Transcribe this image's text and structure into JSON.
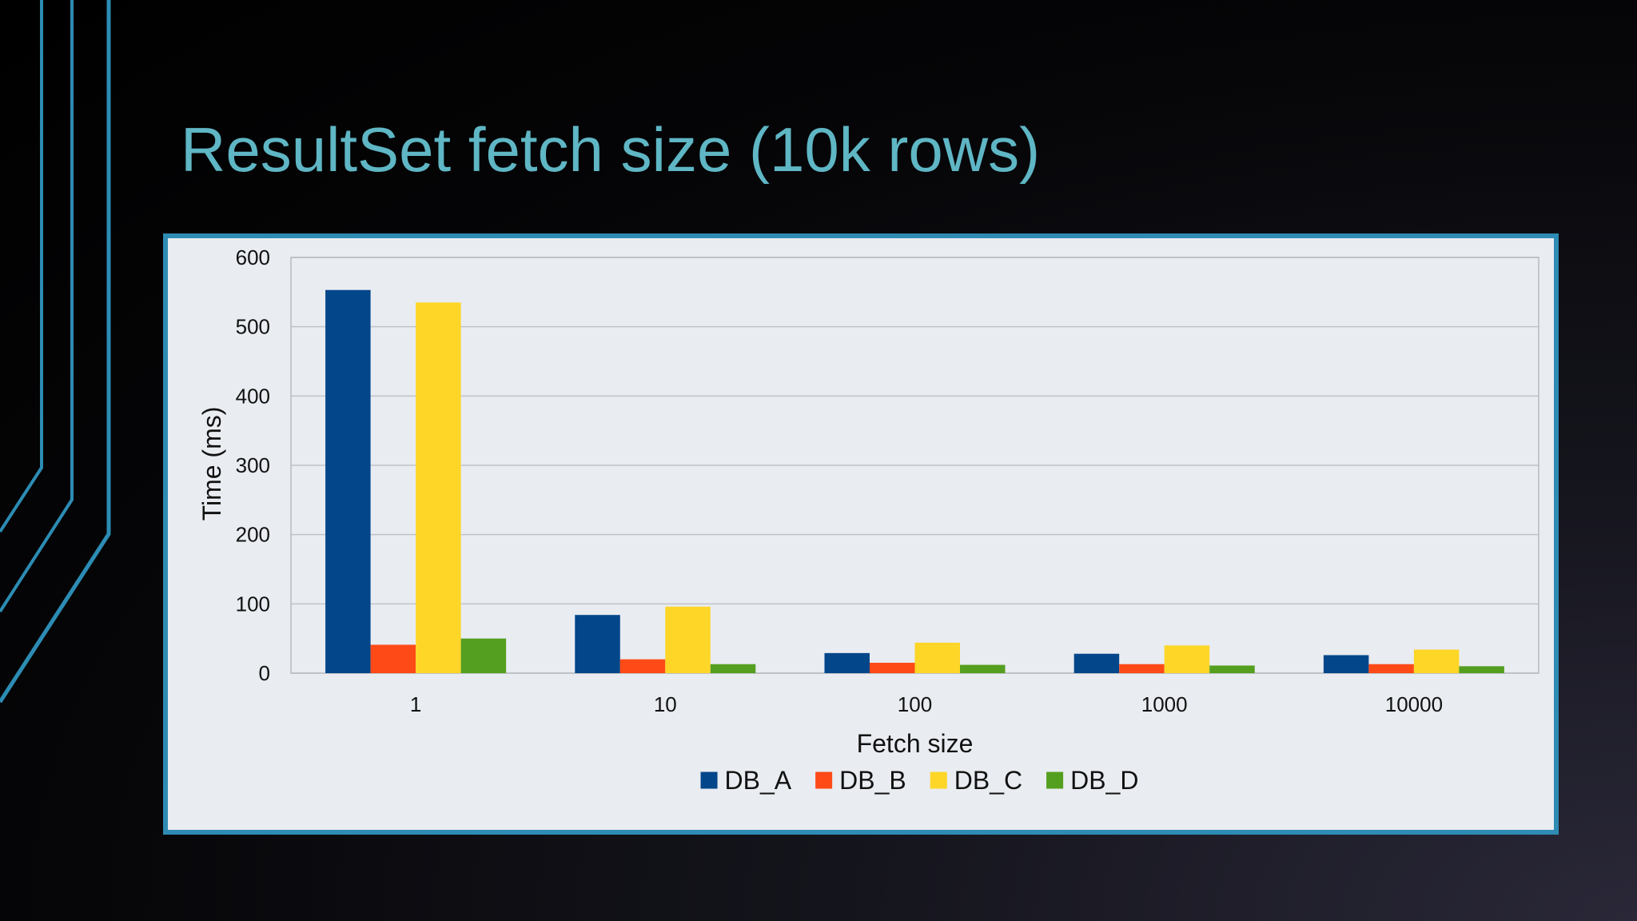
{
  "slide": {
    "title": "ResultSet fetch size (10k rows)",
    "title_color": "#5fb6c4",
    "frame_color": "#2e8bb3",
    "deco_color": "#2c8cb4"
  },
  "chart_data": {
    "type": "bar",
    "xlabel": "Fetch size",
    "ylabel": "Time (ms)",
    "ylim": [
      0,
      600
    ],
    "yticks": [
      0,
      100,
      200,
      300,
      400,
      500,
      600
    ],
    "categories": [
      "1",
      "10",
      "100",
      "1000",
      "10000"
    ],
    "grid": true,
    "legend_position": "bottom",
    "series": [
      {
        "name": "DB_A",
        "color": "#03468a",
        "values": [
          553,
          84,
          29,
          28,
          26
        ]
      },
      {
        "name": "DB_B",
        "color": "#fe4a17",
        "values": [
          41,
          20,
          15,
          13,
          13
        ]
      },
      {
        "name": "DB_C",
        "color": "#fdd628",
        "values": [
          535,
          96,
          44,
          40,
          34
        ]
      },
      {
        "name": "DB_D",
        "color": "#549f1f",
        "values": [
          50,
          13,
          12,
          11,
          10
        ]
      }
    ]
  }
}
